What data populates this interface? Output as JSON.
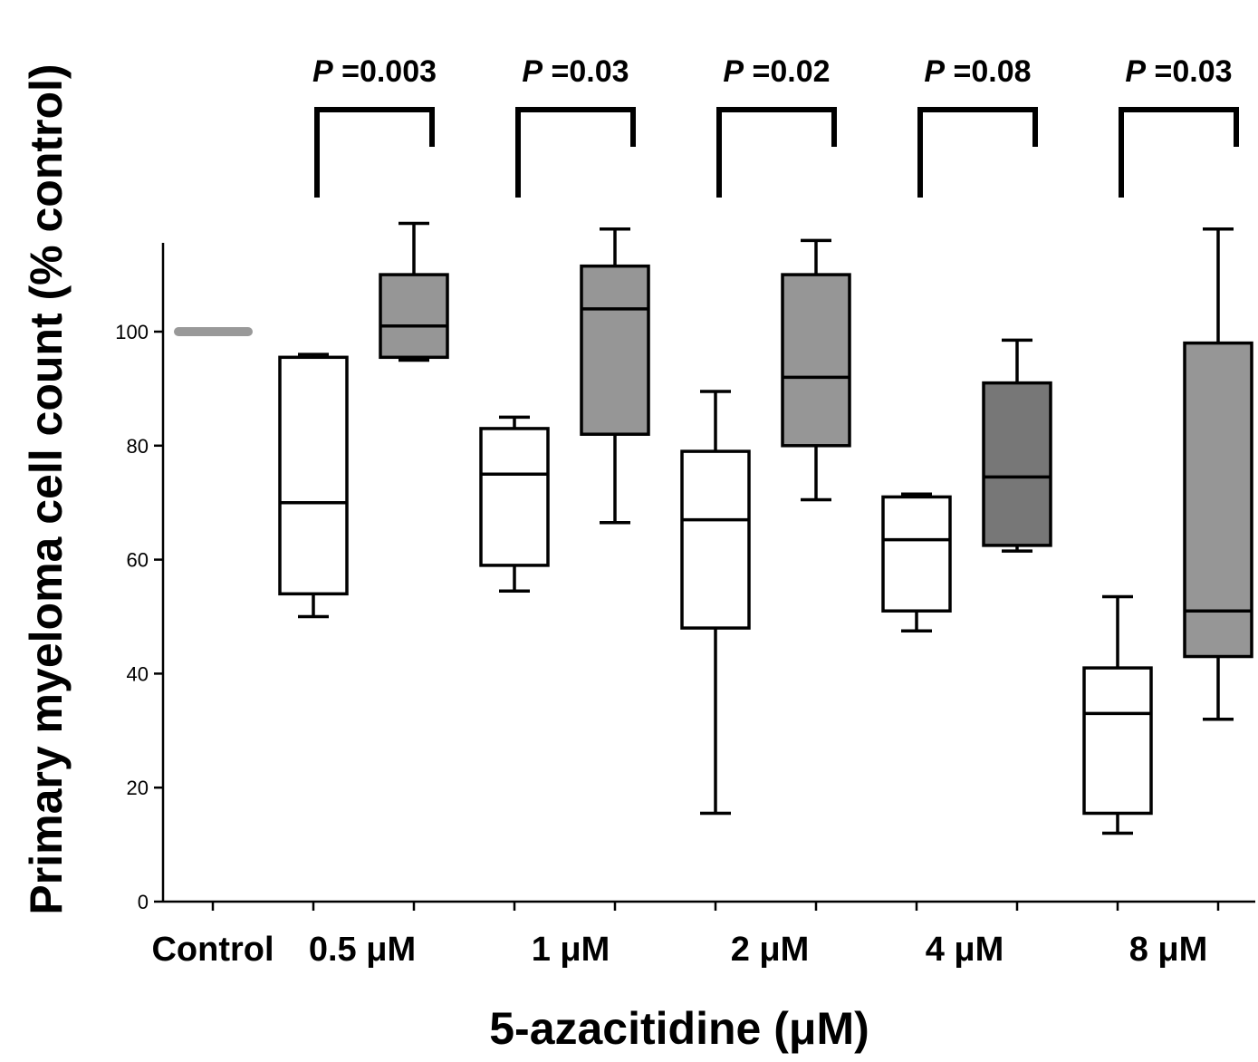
{
  "chart_data": {
    "type": "boxplot",
    "xlabel": "5-azacitidine (μM)",
    "ylabel": "Primary myeloma cell count (% control)",
    "ylim": [
      0,
      115
    ],
    "yticks": [
      0,
      20,
      40,
      60,
      80,
      100
    ],
    "grid": false,
    "categories": [
      "Control",
      "0.5 μM",
      "1 μM",
      "2 μM",
      "4 μM",
      "8 μM"
    ],
    "control_value": 100,
    "control_color": "#999999",
    "boxes": [
      {
        "category": "0.5 μM",
        "fill": "#ffffff",
        "min": 50,
        "q1": 54,
        "median": 70,
        "q3": 95.5,
        "max": 96
      },
      {
        "category": "0.5 μM",
        "fill": "#969696",
        "min": 95,
        "q1": 95.5,
        "median": 101,
        "q3": 110,
        "max": 119
      },
      {
        "category": "1 μM",
        "fill": "#ffffff",
        "min": 54.5,
        "q1": 59,
        "median": 75,
        "q3": 83,
        "max": 85
      },
      {
        "category": "1 μM",
        "fill": "#969696",
        "min": 66.5,
        "q1": 82,
        "median": 104,
        "q3": 111.5,
        "max": 118
      },
      {
        "category": "2 μM",
        "fill": "#ffffff",
        "min": 15.5,
        "q1": 48,
        "median": 67,
        "q3": 79,
        "max": 89.5
      },
      {
        "category": "2 μM",
        "fill": "#969696",
        "min": 70.5,
        "q1": 80,
        "median": 92,
        "q3": 110,
        "max": 116
      },
      {
        "category": "4 μM",
        "fill": "#ffffff",
        "min": 47.5,
        "q1": 51,
        "median": 63.5,
        "q3": 71,
        "max": 71.5
      },
      {
        "category": "4 μM",
        "fill": "#777777",
        "min": 61.5,
        "q1": 62.5,
        "median": 74.5,
        "q3": 91,
        "max": 98.5
      },
      {
        "category": "8 μM",
        "fill": "#ffffff",
        "min": 12,
        "q1": 15.5,
        "median": 33,
        "q3": 41,
        "max": 53.5
      },
      {
        "category": "8 μM",
        "fill": "#969696",
        "min": 32,
        "q1": 43,
        "median": 51,
        "q3": 98,
        "max": 118
      }
    ],
    "p_values": [
      {
        "category": "0.5 μM",
        "prefix": "P",
        "text": " =0.003"
      },
      {
        "category": "1 μM",
        "prefix": "P",
        "text": " =0.03"
      },
      {
        "category": "2 μM",
        "prefix": "P",
        "text": " =0.02"
      },
      {
        "category": "4 μM",
        "prefix": "P",
        "text": " =0.08"
      },
      {
        "category": "8 μM",
        "prefix": "P",
        "text": " =0.03"
      }
    ]
  }
}
